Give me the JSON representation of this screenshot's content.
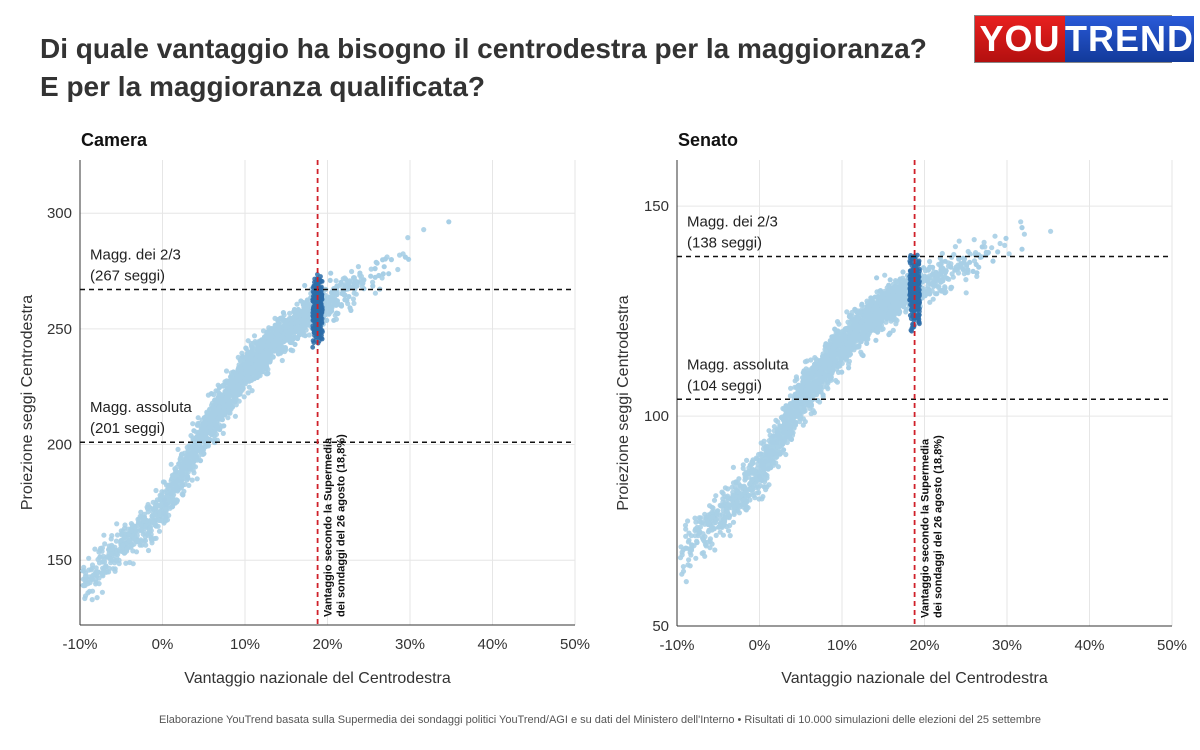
{
  "header": {
    "title_line1": "Di quale vantaggio ha bisogno il centrodestra per la maggioranza?",
    "title_line2": "E per la maggioranza qualificata?",
    "logo_you": "YOU",
    "logo_trend": "TREND"
  },
  "footer": {
    "source": "Elaborazione YouTrend basata sulla Supermedia dei sondaggi politici YouTrend/AGI e su dati del Ministero dell'Interno • Risultati di 10.000 simulazioni delle elezioni del 25 settembre"
  },
  "colors": {
    "points": "#a8cfe6",
    "highlight": "#2b6ca8",
    "vline": "#d0202a",
    "hline": "#111111"
  },
  "chart_data": [
    {
      "type": "scatter",
      "title": "Camera",
      "xlabel": "Vantaggio nazionale del Centrodestra",
      "ylabel": "Proiezione seggi Centrodestra",
      "xlim": [
        -10,
        50
      ],
      "ylim": [
        122,
        323
      ],
      "x_ticks": [
        -10,
        0,
        10,
        20,
        30,
        40,
        50
      ],
      "x_tick_labels": [
        "-10%",
        "0%",
        "10%",
        "20%",
        "30%",
        "40%",
        "50%"
      ],
      "y_ticks": [
        150,
        200,
        250,
        300
      ],
      "y_tick_labels": [
        "150",
        "200",
        "250",
        "300"
      ],
      "grid": true,
      "simulations": 10000,
      "trend": [
        [
          -9.5,
          141
        ],
        [
          0,
          172
        ],
        [
          5,
          205
        ],
        [
          10,
          232
        ],
        [
          15,
          249
        ],
        [
          18.8,
          258
        ],
        [
          25,
          272
        ],
        [
          30,
          283
        ],
        [
          35,
          292
        ],
        [
          40,
          298
        ],
        [
          47,
          302
        ]
      ],
      "highlight_x_range": [
        18.2,
        19.4
      ],
      "highlight_y_range": [
        242,
        274
      ],
      "hlines": [
        {
          "y": 267,
          "label1": "Magg. dei 2/3",
          "label2": "(267 seggi)"
        },
        {
          "y": 201,
          "label1": "Magg. assoluta",
          "label2": "(201 seggi)"
        }
      ],
      "vline": {
        "x": 18.8,
        "label1": "Vantaggio secondo la Supermedia",
        "label2": "dei sondaggi del 26 agosto (18,8%)"
      }
    },
    {
      "type": "scatter",
      "title": "Senato",
      "xlabel": "Vantaggio nazionale del Centrodestra",
      "ylabel": "Proiezione seggi Centrodestra",
      "xlim": [
        -10,
        50
      ],
      "ylim": [
        50,
        161
      ],
      "x_ticks": [
        -10,
        0,
        10,
        20,
        30,
        40,
        50
      ],
      "x_tick_labels": [
        "-10%",
        "0%",
        "10%",
        "20%",
        "30%",
        "40%",
        "50%"
      ],
      "y_ticks": [
        50,
        100,
        150
      ],
      "y_tick_labels": [
        "50",
        "100",
        "150"
      ],
      "grid": true,
      "simulations": 10000,
      "trend": [
        [
          -9.5,
          67
        ],
        [
          0,
          86
        ],
        [
          5,
          104
        ],
        [
          10,
          117
        ],
        [
          15,
          126
        ],
        [
          18.8,
          130
        ],
        [
          25,
          137
        ],
        [
          30,
          141
        ],
        [
          35,
          144
        ],
        [
          40,
          146
        ],
        [
          47,
          149
        ]
      ],
      "highlight_x_range": [
        18.2,
        19.4
      ],
      "highlight_y_range": [
        120,
        139
      ],
      "hlines": [
        {
          "y": 138,
          "label1": "Magg. dei 2/3",
          "label2": "(138 seggi)"
        },
        {
          "y": 104,
          "label1": "Magg. assoluta",
          "label2": "(104 seggi)"
        }
      ],
      "vline": {
        "x": 18.8,
        "label1": "Vantaggio secondo la Supermedia",
        "label2": "dei sondaggi del 26 agosto (18,8%)"
      }
    }
  ]
}
